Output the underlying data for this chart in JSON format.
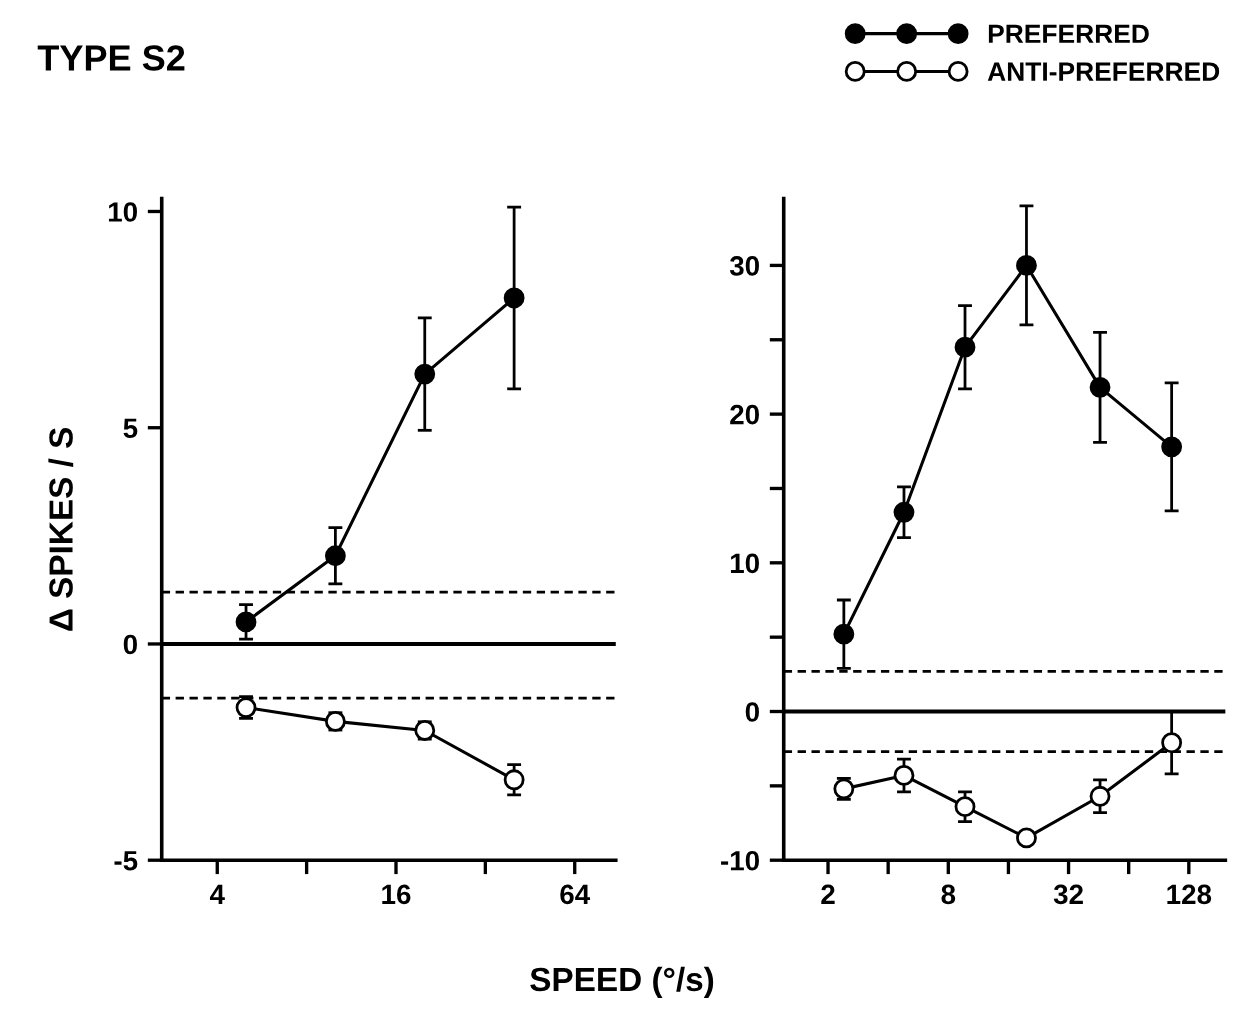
{
  "chart_data": [
    {
      "type": "line",
      "title": "TYPE S2",
      "xlabel": "SPEED (°/s)",
      "ylabel": "Δ SPIKES / S",
      "log": "x",
      "xlim": [
        2.6,
        88
      ],
      "xticks": [
        4,
        {
          "value": 8,
          "label": null
        },
        16,
        {
          "value": 32,
          "label": null
        },
        64
      ],
      "ylim": [
        -5,
        10.3
      ],
      "yticks": [
        -5,
        0,
        5,
        10
      ],
      "marker": "circle",
      "line_style": "solid",
      "grid": false,
      "legend": "top right",
      "series": [
        {
          "name": "PREFERRED",
          "color": "#000000",
          "x": [
            5,
            10,
            20,
            40
          ],
          "values": [
            0.51,
            2.04,
            6.24,
            8.0
          ],
          "errors": [
            0.4,
            0.65,
            1.3,
            2.1
          ]
        },
        {
          "name": "ANTI-PREFERRED",
          "color": "#ffffff",
          "x": [
            5,
            10,
            20,
            40
          ],
          "values": [
            -1.47,
            -1.79,
            -2.0,
            -3.14
          ],
          "errors": [
            0.25,
            0.2,
            0.2,
            0.35
          ]
        }
      ],
      "ref_lines": [
        {
          "axis": "y",
          "value": 0,
          "line_style": "solid"
        },
        {
          "axis": "y",
          "value": 1.2,
          "line_style": "dashed"
        },
        {
          "axis": "y",
          "value": -1.25,
          "line_style": "dashed"
        }
      ]
    },
    {
      "type": "line",
      "log": "x",
      "xlim": [
        1.2,
        195
      ],
      "xticks": [
        2,
        {
          "value": 4,
          "label": null
        },
        8,
        {
          "value": 16,
          "label": null
        },
        32,
        {
          "value": 64,
          "label": null
        },
        128
      ],
      "ylim": [
        -10,
        34.5
      ],
      "yticks": [
        -10,
        {
          "value": -5,
          "label": null
        },
        0,
        {
          "value": 5,
          "label": null
        },
        10,
        {
          "value": 15,
          "label": null
        },
        20,
        {
          "value": 25,
          "label": null
        },
        30
      ],
      "marker": "circle",
      "line_style": "solid",
      "grid": false,
      "series": [
        {
          "color": "#000000",
          "x": [
            2.4,
            4.8,
            9.7,
            19.7,
            46,
            105
          ],
          "values": [
            5.2,
            13.4,
            24.5,
            30,
            21.8,
            17.8
          ],
          "errors": [
            2.3,
            1.7,
            2.8,
            4,
            3.7,
            4.3
          ]
        },
        {
          "color": "#ffffff",
          "x": [
            2.4,
            4.8,
            9.7,
            19.7,
            46,
            105
          ],
          "values": [
            -5.2,
            -4.3,
            -6.4,
            -8.5,
            -5.7,
            -2.1
          ],
          "errors": [
            0.7,
            1.1,
            1.0,
            null,
            1.1,
            2.1
          ]
        }
      ],
      "ref_lines": [
        {
          "axis": "y",
          "value": 0,
          "line_style": "solid"
        },
        {
          "axis": "y",
          "value": 2.7,
          "line_style": "dashed"
        },
        {
          "axis": "y",
          "value": -2.7,
          "line_style": "dashed"
        }
      ]
    }
  ]
}
